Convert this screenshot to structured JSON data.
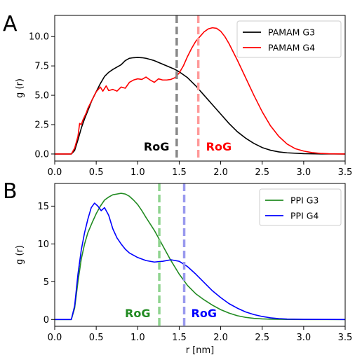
{
  "chart_data": [
    {
      "panel": "A",
      "type": "line",
      "xlabel": "",
      "ylabel": "g (r)",
      "xlim": [
        0.0,
        3.5
      ],
      "ylim": [
        -0.6,
        11.8
      ],
      "xticks": [
        0.0,
        0.5,
        1.0,
        1.5,
        2.0,
        2.5,
        3.0,
        3.5
      ],
      "xtick_labels": [
        "0.0",
        "0.5",
        "1.0",
        "1.5",
        "2.0",
        "2.5",
        "3.0",
        "3.5"
      ],
      "yticks": [
        0.0,
        2.5,
        5.0,
        7.5,
        10.0
      ],
      "ytick_labels": [
        "0.0",
        "2.5",
        "5.0",
        "7.5",
        "10.0"
      ],
      "grid": false,
      "legend_position": "top-right",
      "series": [
        {
          "name": "PAMAM G3",
          "color": "#000000",
          "x": [
            0.0,
            0.2,
            0.24,
            0.28,
            0.32,
            0.36,
            0.4,
            0.45,
            0.5,
            0.55,
            0.6,
            0.65,
            0.7,
            0.75,
            0.8,
            0.85,
            0.9,
            0.95,
            1.0,
            1.05,
            1.1,
            1.15,
            1.2,
            1.25,
            1.3,
            1.35,
            1.4,
            1.45,
            1.5,
            1.6,
            1.7,
            1.8,
            1.9,
            2.0,
            2.1,
            2.2,
            2.3,
            2.4,
            2.5,
            2.6,
            2.7,
            2.8,
            3.0,
            3.2,
            3.5
          ],
          "y": [
            0.0,
            0.0,
            0.3,
            1.2,
            2.2,
            3.0,
            3.7,
            4.6,
            5.3,
            6.0,
            6.6,
            6.95,
            7.2,
            7.4,
            7.6,
            7.95,
            8.15,
            8.2,
            8.22,
            8.2,
            8.15,
            8.05,
            7.95,
            7.8,
            7.65,
            7.5,
            7.35,
            7.2,
            7.0,
            6.5,
            5.8,
            5.0,
            4.2,
            3.4,
            2.6,
            1.9,
            1.35,
            0.9,
            0.55,
            0.32,
            0.18,
            0.1,
            0.03,
            0.01,
            0.0
          ]
        },
        {
          "name": "PAMAM G4",
          "color": "#ff0000",
          "x": [
            0.0,
            0.2,
            0.24,
            0.28,
            0.3,
            0.32,
            0.34,
            0.36,
            0.38,
            0.4,
            0.45,
            0.5,
            0.55,
            0.58,
            0.62,
            0.65,
            0.7,
            0.75,
            0.8,
            0.85,
            0.9,
            0.95,
            1.0,
            1.05,
            1.1,
            1.15,
            1.2,
            1.25,
            1.3,
            1.35,
            1.4,
            1.45,
            1.5,
            1.55,
            1.6,
            1.65,
            1.7,
            1.75,
            1.8,
            1.85,
            1.9,
            1.95,
            2.0,
            2.05,
            2.1,
            2.2,
            2.3,
            2.4,
            2.5,
            2.6,
            2.7,
            2.8,
            2.9,
            3.0,
            3.1,
            3.2,
            3.3,
            3.5
          ],
          "y": [
            0.0,
            0.0,
            0.5,
            1.5,
            2.6,
            2.5,
            2.9,
            3.2,
            3.5,
            3.9,
            4.6,
            5.3,
            5.7,
            5.35,
            5.8,
            5.4,
            5.5,
            5.35,
            5.7,
            5.6,
            6.1,
            6.3,
            6.4,
            6.35,
            6.55,
            6.3,
            6.1,
            6.4,
            6.3,
            6.3,
            6.35,
            6.5,
            6.9,
            7.5,
            8.3,
            9.0,
            9.6,
            10.0,
            10.4,
            10.65,
            10.75,
            10.7,
            10.45,
            10.0,
            9.4,
            8.0,
            6.5,
            5.0,
            3.6,
            2.4,
            1.5,
            0.85,
            0.45,
            0.25,
            0.12,
            0.05,
            0.02,
            0.0
          ]
        }
      ],
      "annotations": [
        {
          "text": "RoG",
          "x": 1.47,
          "color": "#000000",
          "line_color": "#888888"
        },
        {
          "text": "RoG",
          "x": 1.73,
          "color": "#ff0000",
          "line_color": "#ff9999"
        }
      ]
    },
    {
      "panel": "B",
      "type": "line",
      "xlabel": "r [nm]",
      "ylabel": "g (r)",
      "xlim": [
        0.0,
        3.5
      ],
      "ylim": [
        -0.9,
        18.0
      ],
      "xticks": [
        0.0,
        0.5,
        1.0,
        1.5,
        2.0,
        2.5,
        3.0,
        3.5
      ],
      "xtick_labels": [
        "0.0",
        "0.5",
        "1.0",
        "1.5",
        "2.0",
        "2.5",
        "3.0",
        "3.5"
      ],
      "yticks": [
        0,
        5,
        10,
        15
      ],
      "ytick_labels": [
        "0",
        "5",
        "10",
        "15"
      ],
      "grid": false,
      "legend_position": "top-right",
      "series": [
        {
          "name": "PPI G3",
          "color": "#228b22",
          "x": [
            0.0,
            0.2,
            0.24,
            0.28,
            0.32,
            0.36,
            0.4,
            0.45,
            0.5,
            0.55,
            0.6,
            0.65,
            0.7,
            0.75,
            0.8,
            0.85,
            0.9,
            0.95,
            1.0,
            1.05,
            1.1,
            1.2,
            1.3,
            1.4,
            1.5,
            1.6,
            1.7,
            1.8,
            1.9,
            2.0,
            2.1,
            2.2,
            2.3,
            2.4,
            2.5,
            2.6,
            2.8,
            3.0,
            3.5
          ],
          "y": [
            0.0,
            0.0,
            1.5,
            5.0,
            8.0,
            10.0,
            11.5,
            12.8,
            14.0,
            15.0,
            15.8,
            16.2,
            16.5,
            16.6,
            16.7,
            16.6,
            16.3,
            15.8,
            15.2,
            14.4,
            13.5,
            11.8,
            9.8,
            7.8,
            6.0,
            4.5,
            3.4,
            2.6,
            1.9,
            1.3,
            0.85,
            0.5,
            0.28,
            0.15,
            0.08,
            0.04,
            0.01,
            0.0,
            0.0
          ]
        },
        {
          "name": "PPI G4",
          "color": "#0000ff",
          "x": [
            0.0,
            0.2,
            0.24,
            0.28,
            0.32,
            0.36,
            0.4,
            0.44,
            0.48,
            0.52,
            0.56,
            0.6,
            0.65,
            0.7,
            0.75,
            0.8,
            0.85,
            0.9,
            1.0,
            1.1,
            1.2,
            1.3,
            1.4,
            1.5,
            1.6,
            1.7,
            1.8,
            1.9,
            2.0,
            2.1,
            2.2,
            2.3,
            2.4,
            2.5,
            2.6,
            2.7,
            2.8,
            3.0,
            3.5
          ],
          "y": [
            0.0,
            0.0,
            1.8,
            6.0,
            9.2,
            11.5,
            13.3,
            14.8,
            15.4,
            15.0,
            14.4,
            14.8,
            13.8,
            12.0,
            10.8,
            10.0,
            9.3,
            8.8,
            8.2,
            7.8,
            7.6,
            7.7,
            7.9,
            7.7,
            7.0,
            6.0,
            4.9,
            3.8,
            2.9,
            2.1,
            1.5,
            1.0,
            0.65,
            0.4,
            0.22,
            0.12,
            0.06,
            0.02,
            0.0
          ]
        }
      ],
      "annotations": [
        {
          "text": "RoG",
          "x": 1.26,
          "color": "#228b22",
          "line_color": "#8fd48f"
        },
        {
          "text": "RoG",
          "x": 1.56,
          "color": "#0000ff",
          "line_color": "#9999ee"
        }
      ]
    }
  ]
}
